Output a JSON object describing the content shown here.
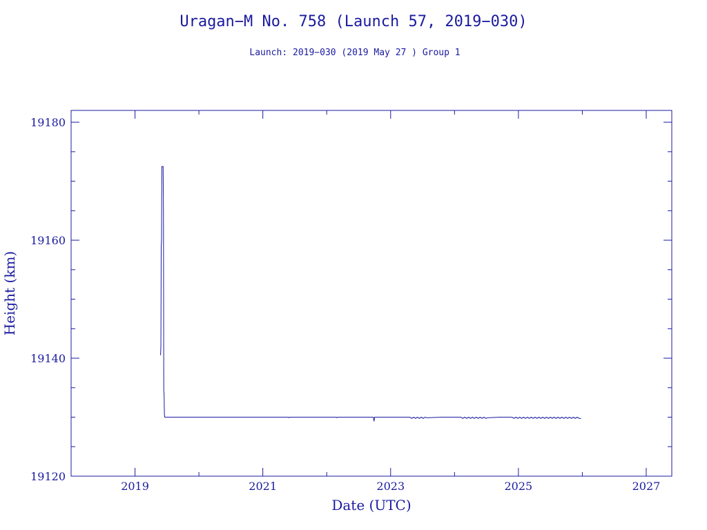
{
  "chart_data": {
    "type": "line",
    "title": "Uragan−M No. 758 (Launch 57, 2019−030)",
    "subtitle": "Launch: 2019−030  (2019 May 27 )  Group 1",
    "xlabel": "Date (UTC)",
    "ylabel": "Height (km)",
    "xlim": [
      2018.0,
      2027.4
    ],
    "ylim": [
      19120,
      19182
    ],
    "x_ticks": [
      2019,
      2021,
      2023,
      2025,
      2027
    ],
    "x_tick_labels": [
      "2019",
      "2021",
      "2023",
      "2025",
      "2027"
    ],
    "x_minor_step": 1,
    "y_ticks": [
      19120,
      19140,
      19160,
      19180
    ],
    "y_tick_labels": [
      "19120",
      "19140",
      "19160",
      "19180"
    ],
    "y_minor_step": 5,
    "grid": false,
    "color": "#1a1aa0",
    "series": [
      {
        "x": [
          2019.4,
          2019.405,
          2019.41,
          2019.415,
          2019.42,
          2019.425,
          2019.43,
          2019.44,
          2019.445,
          2019.45,
          2019.455,
          2019.46,
          2019.465,
          2019.47,
          2019.475,
          2019.48,
          2019.485,
          2019.49,
          2019.5,
          2019.55,
          2020.0,
          2020.5,
          2021.0,
          2021.4,
          2021.41,
          2021.42,
          2021.8,
          2022.15,
          2022.16,
          2022.17,
          2022.5,
          2022.73,
          2022.74,
          2022.75,
          2023.0,
          2023.3,
          2023.33,
          2023.36,
          2023.39,
          2023.42,
          2023.45,
          2023.48,
          2023.51,
          2023.54,
          2023.57,
          2023.8,
          2024.1,
          2024.13,
          2024.16,
          2024.19,
          2024.22,
          2024.25,
          2024.28,
          2024.31,
          2024.34,
          2024.37,
          2024.4,
          2024.43,
          2024.46,
          2024.49,
          2024.52,
          2024.7,
          2024.9,
          2024.93,
          2024.96,
          2024.99,
          2025.02,
          2025.05,
          2025.08,
          2025.11,
          2025.14,
          2025.17,
          2025.2,
          2025.23,
          2025.26,
          2025.29,
          2025.32,
          2025.35,
          2025.38,
          2025.41,
          2025.44,
          2025.47,
          2025.5,
          2025.53,
          2025.56,
          2025.59,
          2025.62,
          2025.65,
          2025.68,
          2025.71,
          2025.74,
          2025.77,
          2025.8,
          2025.83,
          2025.86,
          2025.89,
          2025.92,
          2025.95,
          2025.98
        ],
        "y": [
          19140.5,
          19142.0,
          19159.0,
          19160.0,
          19172.5,
          19172.5,
          19172.5,
          19172.5,
          19165.0,
          19134.5,
          19134.0,
          19130.5,
          19130.0,
          19130.0,
          19130.0,
          19130.0,
          19130.0,
          19130.0,
          19130.0,
          19130.0,
          19130.0,
          19130.0,
          19130.0,
          19130.0,
          19129.9,
          19130.0,
          19130.0,
          19130.0,
          19129.9,
          19130.0,
          19130.0,
          19130.0,
          19129.3,
          19130.0,
          19130.0,
          19130.0,
          19129.8,
          19130.0,
          19129.8,
          19130.0,
          19129.8,
          19130.0,
          19129.8,
          19130.0,
          19129.9,
          19130.0,
          19130.0,
          19129.8,
          19130.0,
          19129.8,
          19130.0,
          19129.8,
          19130.0,
          19129.8,
          19130.0,
          19129.8,
          19130.0,
          19129.8,
          19130.0,
          19129.8,
          19129.9,
          19130.0,
          19130.0,
          19129.8,
          19130.0,
          19129.8,
          19130.0,
          19129.8,
          19130.0,
          19129.8,
          19130.0,
          19129.8,
          19130.0,
          19129.8,
          19130.0,
          19129.8,
          19130.0,
          19129.8,
          19130.0,
          19129.8,
          19130.0,
          19129.8,
          19130.0,
          19129.8,
          19130.0,
          19129.8,
          19130.0,
          19129.8,
          19130.0,
          19129.8,
          19130.0,
          19129.8,
          19130.0,
          19129.8,
          19130.0,
          19129.8,
          19130.0,
          19129.8,
          19129.8
        ]
      }
    ]
  }
}
